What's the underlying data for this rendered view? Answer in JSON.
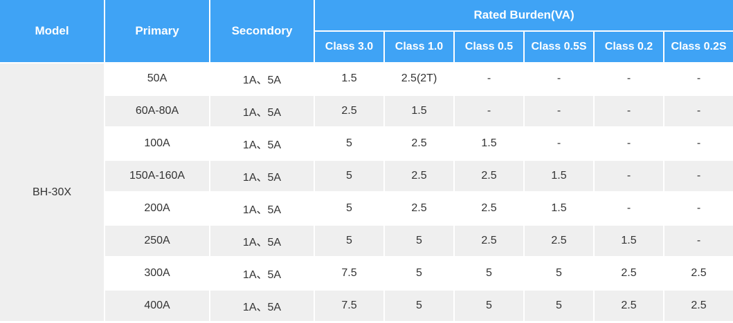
{
  "table": {
    "headers": {
      "model": "Model",
      "primary": "Primary",
      "secondary": "Secondory",
      "rated_burden": "Rated Burden(VA)",
      "classes": [
        "Class 3.0",
        "Class 1.0",
        "Class 0.5",
        "Class 0.5S",
        "Class 0.2",
        "Class 0.2S"
      ]
    },
    "model": "BH-30X",
    "rows": [
      {
        "primary": "50A",
        "secondary": "1A、5A",
        "values": [
          "1.5",
          "2.5(2T)",
          "-",
          "-",
          "-",
          "-"
        ]
      },
      {
        "primary": "60A-80A",
        "secondary": "1A、5A",
        "values": [
          "2.5",
          "1.5",
          "-",
          "-",
          "-",
          "-"
        ]
      },
      {
        "primary": "100A",
        "secondary": "1A、5A",
        "values": [
          "5",
          "2.5",
          "1.5",
          "-",
          "-",
          "-"
        ]
      },
      {
        "primary": "150A-160A",
        "secondary": "1A、5A",
        "values": [
          "5",
          "2.5",
          "2.5",
          "1.5",
          "-",
          "-"
        ]
      },
      {
        "primary": "200A",
        "secondary": "1A、5A",
        "values": [
          "5",
          "2.5",
          "2.5",
          "1.5",
          "-",
          "-"
        ]
      },
      {
        "primary": "250A",
        "secondary": "1A、5A",
        "values": [
          "5",
          "5",
          "2.5",
          "2.5",
          "1.5",
          "-"
        ]
      },
      {
        "primary": "300A",
        "secondary": "1A、5A",
        "values": [
          "7.5",
          "5",
          "5",
          "5",
          "2.5",
          "2.5"
        ]
      },
      {
        "primary": "400A",
        "secondary": "1A、5A",
        "values": [
          "7.5",
          "5",
          "5",
          "5",
          "2.5",
          "2.5"
        ]
      }
    ]
  },
  "colors": {
    "header_bg": "#3fa3f5",
    "header_text": "#ffffff",
    "stripe": "#efefef"
  }
}
